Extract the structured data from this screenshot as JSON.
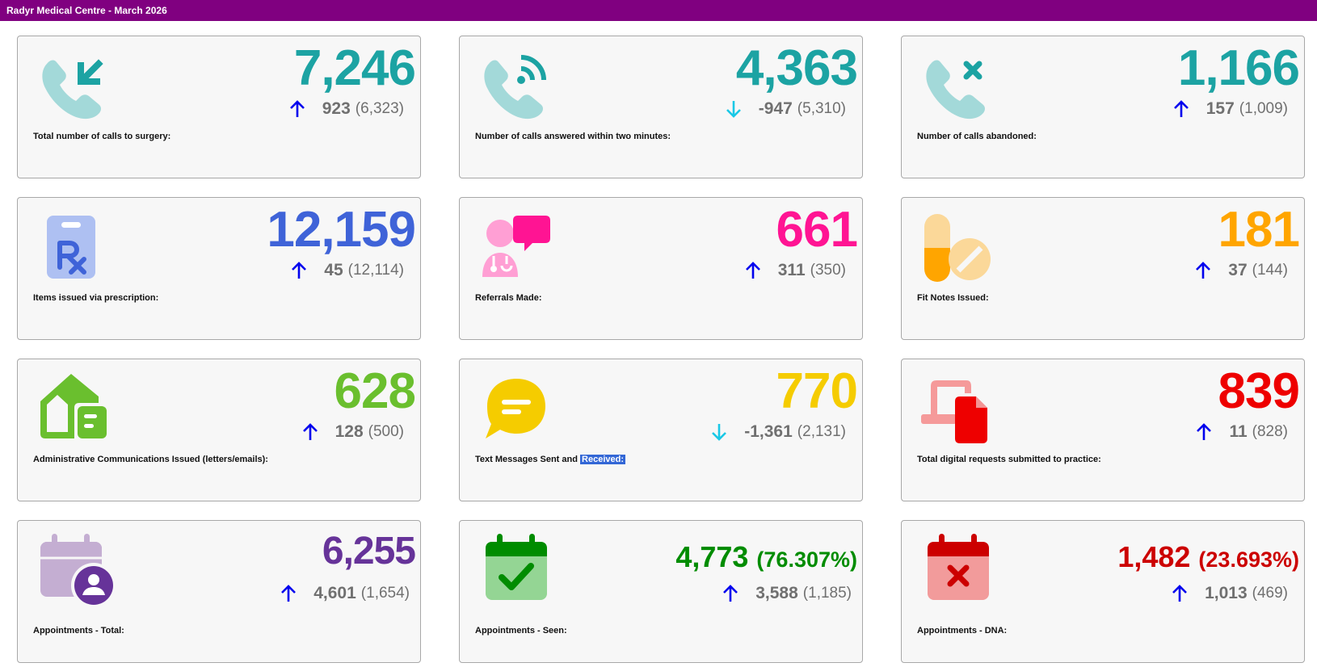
{
  "header": {
    "title": "Radyr Medical Centre - March 2026"
  },
  "colors": {
    "header_bg": "#800080",
    "arrow_up": "#0000ee",
    "arrow_down": "#19c8e6",
    "teal": "#1ca3a3",
    "blue": "#3f63d8",
    "pink": "#ff1493",
    "orange": "#ffa500",
    "green_admin": "#6abf2e",
    "yellow": "#f5cc00",
    "red": "#ee0000",
    "purple": "#663399",
    "green_seen": "#008c00",
    "red_dna": "#cc0000"
  },
  "cards": [
    {
      "label": "Total number of calls to surgery:",
      "value": "7,246",
      "delta": "923",
      "previous": "(6,323)",
      "trend": "up",
      "icon": "incoming-call-icon"
    },
    {
      "label": "Number of calls answered within two minutes:",
      "value": "4,363",
      "delta": "-947",
      "previous": "(5,310)",
      "trend": "down",
      "icon": "call-answered-icon"
    },
    {
      "label": "Number of calls abandoned:",
      "value": "1,166",
      "delta": "157",
      "previous": "(1,009)",
      "trend": "up",
      "icon": "call-abandoned-icon"
    },
    {
      "label": "Items issued via prescription:",
      "value": "12,159",
      "delta": "45",
      "previous": "(12,114)",
      "trend": "up",
      "icon": "prescription-icon"
    },
    {
      "label": "Referrals Made:",
      "value": "661",
      "delta": "311",
      "previous": "(350)",
      "trend": "up",
      "icon": "doctor-chat-icon"
    },
    {
      "label": "Fit Notes Issued:",
      "value": "181",
      "delta": "37",
      "previous": "(144)",
      "trend": "up",
      "icon": "pills-icon"
    },
    {
      "label": "Administrative Communications Issued (letters/emails):",
      "value": "628",
      "delta": "128",
      "previous": "(500)",
      "trend": "up",
      "icon": "house-document-icon"
    },
    {
      "label": "Text Messages Sent and ",
      "label_highlight": "Received:",
      "value": "770",
      "delta": "-1,361",
      "previous": "(2,131)",
      "trend": "down",
      "icon": "message-bubble-icon"
    },
    {
      "label": "Total digital requests submitted to practice:",
      "value": "839",
      "delta": "11",
      "previous": "(828)",
      "trend": "up",
      "icon": "device-document-icon"
    },
    {
      "label": "Appointments - Total:",
      "value": "6,255",
      "delta": "4,601",
      "previous": "(1,654)",
      "trend": "up",
      "icon": "calendar-user-icon"
    },
    {
      "label": "Appointments - Seen:",
      "value": "4,773",
      "value_pct": "(76.307%)",
      "delta": "3,588",
      "previous": "(1,185)",
      "trend": "up",
      "icon": "calendar-check-icon"
    },
    {
      "label": "Appointments - DNA:",
      "value": "1,482",
      "value_pct": "(23.693%)",
      "delta": "1,013",
      "previous": "(469)",
      "trend": "up",
      "icon": "calendar-cross-icon"
    }
  ]
}
